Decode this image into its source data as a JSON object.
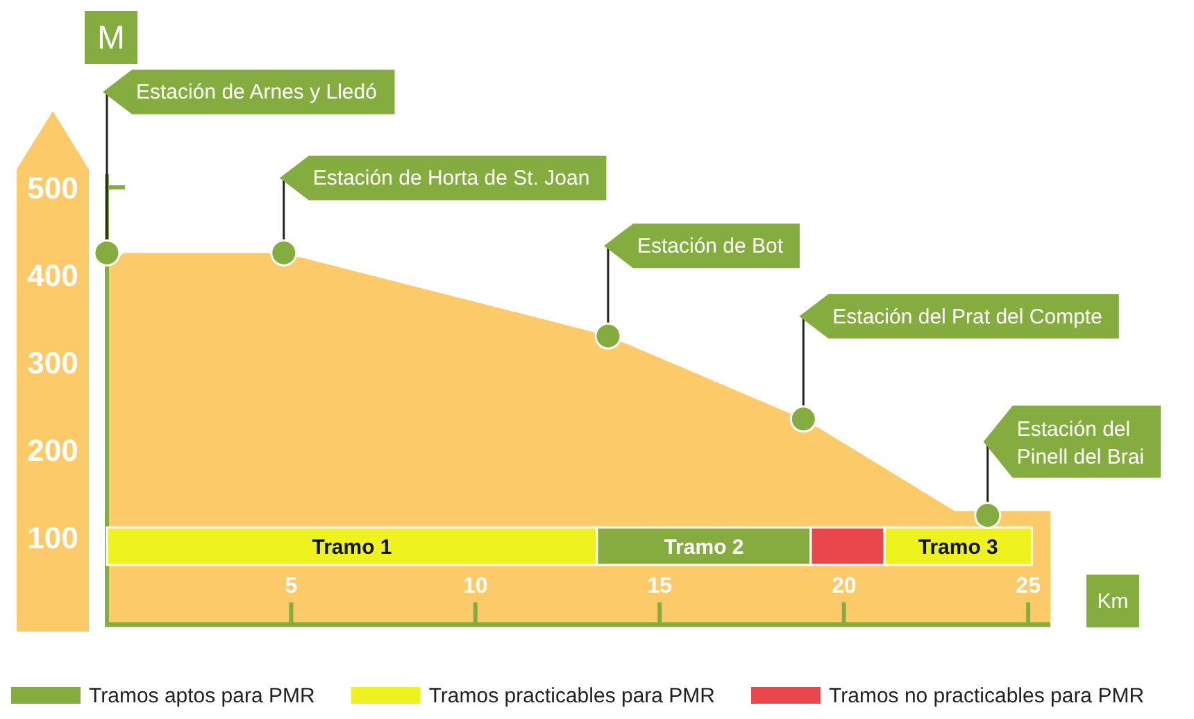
{
  "chart_data": [
    {
      "type": "area",
      "xlabel": "Km",
      "ylabel": "M",
      "xlim": [
        0,
        25.6
      ],
      "ylim": [
        0,
        515
      ],
      "xticks": [
        5,
        10,
        15,
        20,
        25
      ],
      "yticks": [
        100,
        200,
        300,
        400,
        500
      ],
      "series": [
        {
          "type": "area",
          "color": "#fdca6a",
          "x": [
            0,
            0.45,
            4.35,
            5.25,
            13.15,
            14.05,
            18.45,
            19.35,
            23.0,
            25.6
          ],
          "values": [
            408,
            425,
            425,
            420,
            335,
            322,
            243,
            224,
            130,
            130
          ]
        },
        {
          "type": "scatter",
          "color": "#85ac3e",
          "marker": "circle",
          "x": [
            0,
            4.8,
            13.6,
            18.9,
            23.9
          ],
          "values": [
            425,
            425,
            330,
            235,
            125
          ]
        }
      ],
      "bands": [
        {
          "axis": "x",
          "from": 0,
          "to": 13.3,
          "label": "Tramo 1",
          "color": "#eef21e"
        },
        {
          "axis": "x",
          "from": 13.3,
          "to": 19.1,
          "label": "Tramo 2",
          "color": "#85ac3e"
        },
        {
          "axis": "x",
          "from": 19.1,
          "to": 21.1,
          "color": "#e9474b"
        },
        {
          "axis": "x",
          "from": 21.1,
          "to": 25.1,
          "label": "Tramo 3",
          "color": "#eef21e"
        }
      ],
      "annotations": [
        {
          "text": "Estación de Arnes y Lledó",
          "x": 0,
          "y": 425
        },
        {
          "text": "Estación de Horta de St. Joan",
          "x": 4.8,
          "y": 425
        },
        {
          "text": "Estación de Bot",
          "x": 13.6,
          "y": 330
        },
        {
          "text": "Estación del Prat del Compte",
          "x": 18.9,
          "y": 235
        },
        {
          "text": "Estación del Pinell del Brai",
          "x": 23.9,
          "y": 125
        }
      ]
    },
    {
      "type": "other",
      "categories": [
        "Tramos aptos para PMR",
        "Tramos practicables para PMR",
        "Tramos no practicables para PMR"
      ],
      "colors": [
        "#85ac3e",
        "#eef21e",
        "#e9474b"
      ]
    }
  ]
}
